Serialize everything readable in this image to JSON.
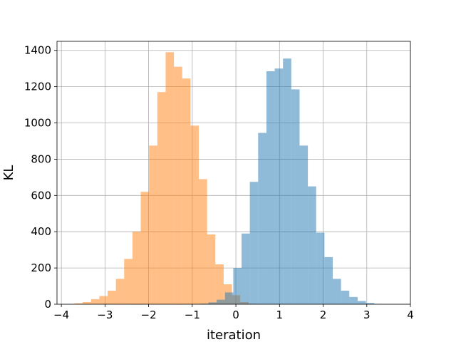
{
  "chart_data": {
    "type": "bar",
    "title": "",
    "xlabel": "iteration",
    "ylabel": "KL",
    "xlim": [
      -4.1,
      4.0
    ],
    "ylim": [
      0,
      1450
    ],
    "grid": true,
    "xticks": [
      -4,
      -3,
      -2,
      -1,
      0,
      1,
      2,
      3,
      4
    ],
    "yticks": [
      0,
      200,
      400,
      600,
      800,
      1000,
      1200,
      1400
    ],
    "series": [
      {
        "color": "#ff7f0e",
        "opacity": 0.5,
        "bin_width": 0.19,
        "bin_starts": [
          -3.7,
          -3.51,
          -3.32,
          -3.13,
          -2.94,
          -2.75,
          -2.56,
          -2.37,
          -2.18,
          -1.99,
          -1.8,
          -1.61,
          -1.42,
          -1.23,
          -1.04,
          -0.85,
          -0.66,
          -0.47,
          -0.28,
          -0.09,
          0.1,
          0.29
        ],
        "values": [
          5,
          12,
          28,
          45,
          75,
          140,
          250,
          400,
          620,
          875,
          1170,
          1390,
          1310,
          1245,
          985,
          690,
          385,
          220,
          110,
          50,
          12,
          3
        ]
      },
      {
        "color": "#1f77b4",
        "opacity": 0.5,
        "bin_width": 0.19,
        "bin_starts": [
          -0.82,
          -0.63,
          -0.44,
          -0.25,
          -0.06,
          0.13,
          0.32,
          0.51,
          0.7,
          0.89,
          1.08,
          1.27,
          1.46,
          1.65,
          1.84,
          2.03,
          2.22,
          2.41,
          2.6,
          2.79,
          2.98,
          3.17
        ],
        "values": [
          3,
          10,
          25,
          65,
          200,
          390,
          675,
          945,
          1285,
          1300,
          1355,
          1185,
          875,
          650,
          395,
          260,
          140,
          75,
          40,
          18,
          7,
          2
        ]
      }
    ]
  }
}
